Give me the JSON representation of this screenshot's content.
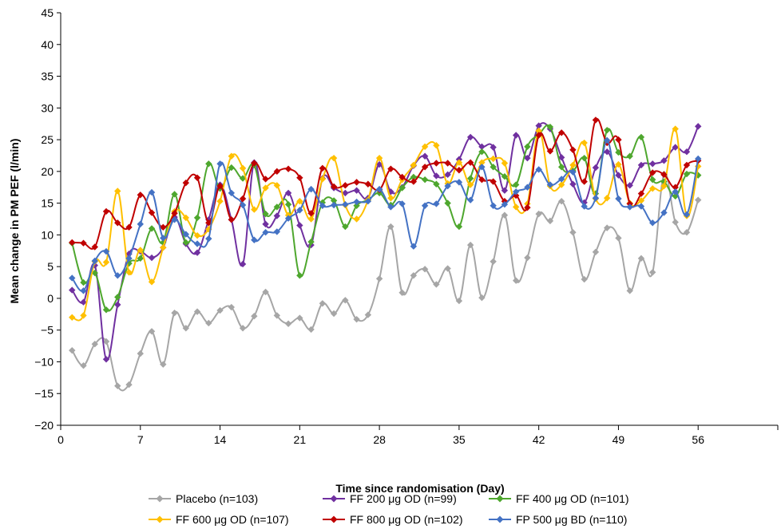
{
  "chart_data": {
    "type": "line",
    "xlabel": "Time since randomisation (Day)",
    "ylabel": "Mean change in PM PEF (l/min)",
    "xlim": [
      0,
      63
    ],
    "ylim": [
      -20,
      45
    ],
    "xticks": [
      0,
      7,
      14,
      21,
      28,
      35,
      42,
      49,
      56
    ],
    "xtick_labels": [
      "0",
      "7",
      "14",
      "21",
      "28",
      "35",
      "42",
      "49",
      "56"
    ],
    "yticks": [
      -20,
      -15,
      -10,
      -5,
      0,
      5,
      10,
      15,
      20,
      25,
      30,
      35,
      40,
      45
    ],
    "ytick_labels": [
      "−20",
      "−15",
      "−10",
      "−5",
      "0",
      "5",
      "10",
      "15",
      "20",
      "25",
      "30",
      "35",
      "40",
      "45"
    ],
    "grid": false,
    "legend_position": "bottom",
    "x": [
      1,
      2,
      3,
      4,
      5,
      6,
      7,
      8,
      9,
      10,
      11,
      12,
      13,
      14,
      15,
      16,
      17,
      18,
      19,
      20,
      21,
      22,
      23,
      24,
      25,
      26,
      27,
      28,
      29,
      30,
      31,
      32,
      33,
      34,
      35,
      36,
      37,
      38,
      39,
      40,
      41,
      42,
      43,
      44,
      45,
      46,
      47,
      48,
      49,
      50,
      51,
      52,
      53,
      54,
      55,
      56
    ],
    "series": [
      {
        "name": "Placebo (n=103)",
        "color": "#a6a6a6",
        "values": [
          -8.2,
          -10.6,
          -7.2,
          -6.8,
          -13.8,
          -13.6,
          -8.7,
          -5.2,
          -10.4,
          -2.3,
          -4.7,
          -2.1,
          -3.9,
          -1.9,
          -1.4,
          -4.7,
          -2.8,
          1.0,
          -2.7,
          -4.0,
          -3.1,
          -4.9,
          -0.8,
          -2.4,
          -0.3,
          -3.3,
          -2.6,
          3.1,
          11.3,
          0.9,
          3.6,
          4.6,
          2.2,
          4.7,
          -0.4,
          8.4,
          0.1,
          5.8,
          13.1,
          2.8,
          6.4,
          13.3,
          12.2,
          15.3,
          10.4,
          3.0,
          7.3,
          11.1,
          9.5,
          1.2,
          6.3,
          4.1,
          19.6,
          12.0,
          10.4,
          15.5
        ]
      },
      {
        "name": "FF 200 μg OD (n=99)",
        "color": "#7030a0",
        "values": [
          1.3,
          -0.6,
          5.2,
          -9.6,
          -1.0,
          7.0,
          7.4,
          6.4,
          8.0,
          12.8,
          8.6,
          7.2,
          12.4,
          17.9,
          12.4,
          5.4,
          21.4,
          11.7,
          13.0,
          16.6,
          11.5,
          8.4,
          18.9,
          17.4,
          16.6,
          17.0,
          15.8,
          21.1,
          16.8,
          17.5,
          20.9,
          22.4,
          19.3,
          19.5,
          21.9,
          25.4,
          23.9,
          23.8,
          17.0,
          25.7,
          22.1,
          27.2,
          26.7,
          22.2,
          18.0,
          15.1,
          20.6,
          23.1,
          19.4,
          17.8,
          21.0,
          21.2,
          21.7,
          23.8,
          23.1,
          27.1
        ]
      },
      {
        "name": "FF 400 μg OD (n=101)",
        "color": "#4ea72e",
        "values": [
          8.7,
          2.5,
          4.0,
          -1.8,
          0.2,
          5.5,
          6.3,
          11.0,
          8.8,
          16.4,
          8.8,
          12.7,
          21.2,
          17.3,
          20.6,
          18.9,
          21.0,
          13.3,
          14.4,
          14.8,
          3.6,
          8.9,
          15.1,
          15.4,
          11.3,
          14.6,
          15.5,
          16.6,
          14.7,
          17.4,
          19.1,
          18.7,
          18.0,
          15.0,
          11.3,
          18.9,
          23.1,
          20.7,
          19.2,
          17.9,
          23.9,
          25.8,
          27.0,
          20.7,
          20.1,
          22.1,
          16.5,
          26.5,
          23.0,
          22.4,
          25.4,
          18.7,
          18.4,
          16.1,
          19.6,
          19.4
        ]
      },
      {
        "name": "FF 600 μg OD (n=107)",
        "color": "#ffc000",
        "values": [
          -3.0,
          -2.7,
          5.8,
          5.7,
          16.9,
          4.1,
          7.6,
          2.6,
          8.0,
          13.7,
          12.7,
          9.9,
          10.9,
          15.3,
          22.4,
          20.5,
          14.0,
          17.4,
          17.8,
          13.1,
          15.3,
          12.5,
          18.8,
          22.1,
          14.7,
          12.5,
          15.5,
          22.1,
          15.8,
          18.7,
          21.0,
          23.9,
          24.1,
          18.1,
          21.4,
          17.9,
          21.4,
          22.0,
          21.3,
          14.4,
          14.9,
          26.4,
          17.7,
          17.9,
          21.0,
          24.5,
          15.7,
          15.8,
          21.1,
          15.0,
          15.4,
          17.3,
          17.7,
          26.7,
          13.0,
          20.8
        ]
      },
      {
        "name": "FF 800 μg OD (n=102)",
        "color": "#c00000",
        "values": [
          8.8,
          8.7,
          8.1,
          13.7,
          11.9,
          11.2,
          16.3,
          13.5,
          11.2,
          13.4,
          18.2,
          19.0,
          11.9,
          17.7,
          12.4,
          15.7,
          21.3,
          18.8,
          20.0,
          20.4,
          19.0,
          13.4,
          20.5,
          17.6,
          17.8,
          18.3,
          18.0,
          17.1,
          20.4,
          19.1,
          18.4,
          20.7,
          21.3,
          21.3,
          20.2,
          21.4,
          18.7,
          18.4,
          15.3,
          16.2,
          14.3,
          25.7,
          23.2,
          26.1,
          23.4,
          18.4,
          28.1,
          24.5,
          25.0,
          14.9,
          16.5,
          19.8,
          19.5,
          17.5,
          21.0,
          21.7
        ]
      },
      {
        "name": "FP 500 μg BD (n=110)",
        "color": "#4472c4",
        "values": [
          3.2,
          1.2,
          5.9,
          7.4,
          3.6,
          6.3,
          11.7,
          16.7,
          9.5,
          12.4,
          10.1,
          8.6,
          9.4,
          21.2,
          16.6,
          14.7,
          9.2,
          10.4,
          10.5,
          12.6,
          13.9,
          17.2,
          14.6,
          14.7,
          14.8,
          15.2,
          15.3,
          17.2,
          14.4,
          14.9,
          8.2,
          14.6,
          14.9,
          17.7,
          18.3,
          15.5,
          20.7,
          14.6,
          14.8,
          16.8,
          17.5,
          20.3,
          17.9,
          18.8,
          19.9,
          14.5,
          15.8,
          24.9,
          15.7,
          14.4,
          14.5,
          11.9,
          13.5,
          16.8,
          13.2,
          22.0
        ]
      }
    ]
  }
}
